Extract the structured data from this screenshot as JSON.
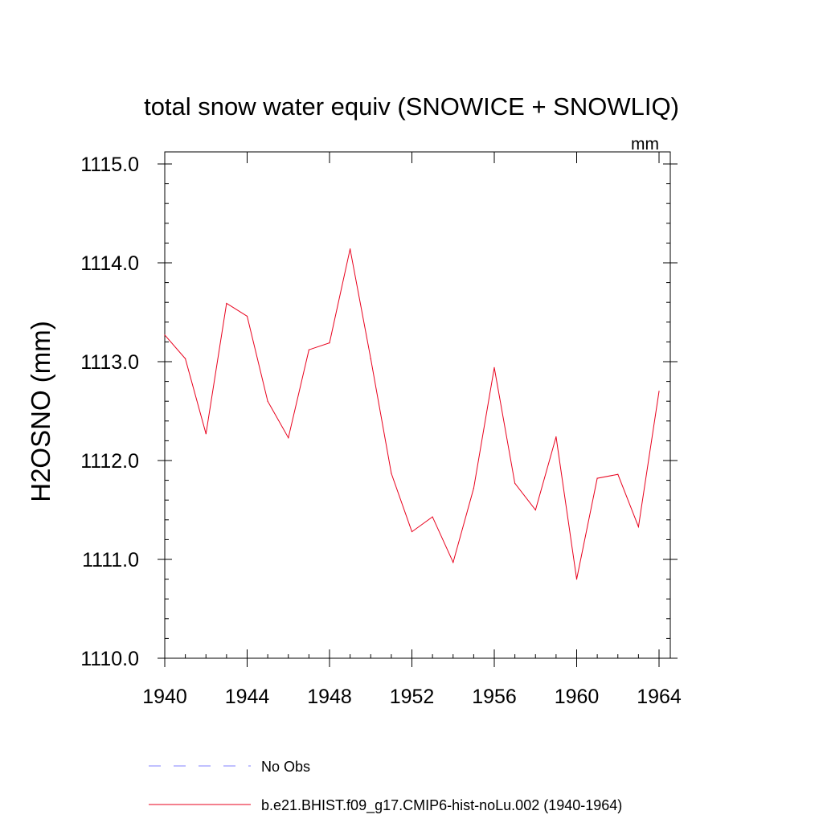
{
  "chart_data": {
    "type": "line",
    "title": "total snow water equiv (SNOWICE + SNOWLIQ)",
    "units": "mm",
    "ylabel": "H2OSNO  (mm)",
    "xlabel": "",
    "xlim": [
      1940,
      1964
    ],
    "ylim": [
      1110.0,
      1115.0
    ],
    "x_ticks": [
      1940,
      1944,
      1948,
      1952,
      1956,
      1960,
      1964
    ],
    "x_tick_labels": [
      "1940",
      "1944",
      "1948",
      "1952",
      "1956",
      "1960",
      "1964"
    ],
    "y_ticks": [
      1110.0,
      1111.0,
      1112.0,
      1113.0,
      1114.0,
      1115.0
    ],
    "y_tick_labels": [
      "1110.0",
      "1111.0",
      "1112.0",
      "1113.0",
      "1114.0",
      "1115.0"
    ],
    "x": [
      1940,
      1941,
      1942,
      1943,
      1944,
      1945,
      1946,
      1947,
      1948,
      1949,
      1950,
      1951,
      1952,
      1953,
      1954,
      1955,
      1956,
      1957,
      1958,
      1959,
      1960,
      1961,
      1962,
      1963,
      1964
    ],
    "series": [
      {
        "name": "b.e21.BHIST.f09_g17.CMIP6-hist-noLu.002 (1940-1964)",
        "color": "#e8001c",
        "values": [
          1113.27,
          1113.03,
          1112.27,
          1113.59,
          1113.46,
          1112.6,
          1112.23,
          1113.12,
          1113.19,
          1114.14,
          1113.03,
          1111.87,
          1111.28,
          1111.43,
          1110.97,
          1111.72,
          1112.94,
          1111.77,
          1111.5,
          1112.24,
          1110.8,
          1111.82,
          1111.86,
          1111.33,
          1112.7
        ]
      }
    ],
    "legend": {
      "placement": "bottom",
      "entries": [
        {
          "label": "No Obs",
          "color": "#8080ff",
          "style": "dashed"
        },
        {
          "label": "b.e21.BHIST.f09_g17.CMIP6-hist-noLu.002 (1940-1964)",
          "color": "#e8001c",
          "style": "solid"
        }
      ]
    },
    "grid": false
  }
}
